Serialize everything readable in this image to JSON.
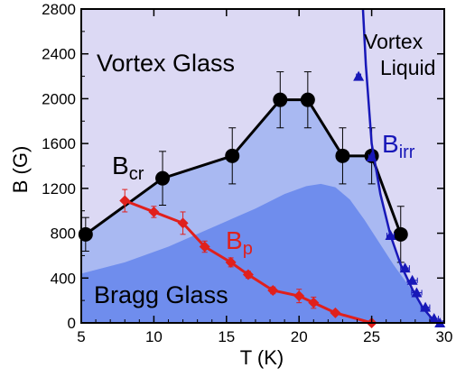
{
  "chart_data": {
    "type": "scatter",
    "title": "",
    "xlabel": "T (K)",
    "ylabel": "B (G)",
    "xlim": [
      5,
      30
    ],
    "ylim": [
      0,
      2800
    ],
    "xticks": [
      5,
      10,
      15,
      20,
      25,
      30
    ],
    "yticks": [
      0,
      400,
      800,
      1200,
      1600,
      2000,
      2400,
      2800
    ],
    "grid": false,
    "colors": {
      "background": "#dcd9f4",
      "vortex_glass_fill": "#a9b9f2",
      "bragg_glass_fill": "#6f8ded",
      "bcr": "#000000",
      "birr": "#1818b8",
      "bp": "#e0201c"
    },
    "regions": [
      {
        "name": "Vortex Glass",
        "color": "#000000"
      },
      {
        "name": "Vortex",
        "color": "#000000"
      },
      {
        "name": "Liquid",
        "color": "#000000"
      },
      {
        "name": "Bragg Glass",
        "color": "#000000"
      }
    ],
    "bragg_boundary": {
      "x": [
        5,
        8,
        11,
        14,
        17,
        19,
        20.5,
        21.5,
        22.5,
        23.5,
        24.5,
        25.5,
        26.5,
        27.5,
        28.5,
        29.5
      ],
      "y": [
        440,
        540,
        680,
        850,
        1020,
        1150,
        1220,
        1240,
        1210,
        1100,
        920,
        720,
        520,
        340,
        150,
        0
      ]
    },
    "series": [
      {
        "name": "Bcr",
        "label_main": "B",
        "label_sub": "cr",
        "marker": "circle",
        "color": "#000000",
        "x": [
          5.3,
          10.6,
          15.4,
          18.7,
          20.6,
          23.0,
          25.0,
          27.0
        ],
        "y": [
          790,
          1290,
          1490,
          1990,
          1990,
          1490,
          1490,
          790
        ],
        "err": [
          150,
          240,
          250,
          250,
          250,
          250,
          250,
          250
        ]
      },
      {
        "name": "Birr",
        "label_main": "B",
        "label_sub": "irr",
        "marker": "triangle",
        "color": "#1818b8",
        "x": [
          24.1,
          25.0,
          26.3,
          27.3,
          27.8,
          28.1,
          28.7,
          29.3,
          29.7
        ],
        "y": [
          2200,
          1480,
          780,
          490,
          380,
          270,
          140,
          40,
          0
        ],
        "xerr": [
          0.15,
          0.2,
          0.25,
          0.3,
          0.35,
          0.35,
          0.3,
          0.3,
          0.2
        ],
        "line_x": [
          24.4,
          24.6,
          25.0,
          25.6,
          26.3,
          27.0,
          27.8,
          28.5,
          29.2,
          29.7
        ],
        "line_y": [
          2800,
          2300,
          1600,
          1150,
          780,
          520,
          300,
          140,
          30,
          0
        ]
      },
      {
        "name": "Bp",
        "label_main": "B",
        "label_sub": "p",
        "marker": "diamond",
        "color": "#e0201c",
        "x": [
          8.0,
          10.0,
          12.0,
          13.5,
          15.3,
          16.5,
          18.2,
          20.0,
          21.0,
          22.5,
          25.0
        ],
        "y": [
          1090,
          990,
          890,
          680,
          540,
          430,
          290,
          240,
          180,
          90,
          0
        ],
        "err": [
          100,
          50,
          100,
          50,
          40,
          30,
          30,
          60,
          50,
          20,
          0
        ]
      }
    ]
  }
}
